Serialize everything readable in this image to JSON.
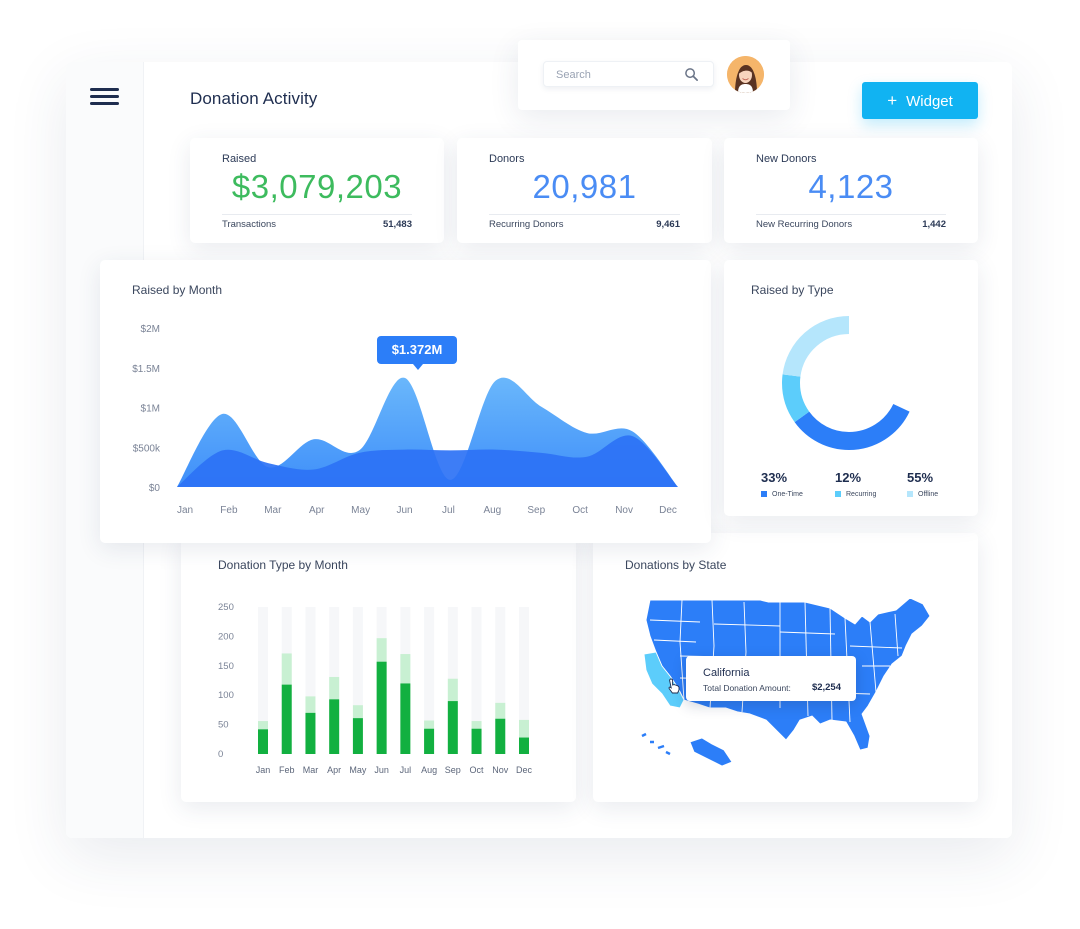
{
  "header": {
    "title": "Donation Activity",
    "search_placeholder": "Search",
    "widget_label": "Widget"
  },
  "stats": [
    {
      "label": "Raised",
      "value": "$3,079,203",
      "sub_label": "Transactions",
      "sub_value": "51,483",
      "color": "#3dbb5e"
    },
    {
      "label": "Donors",
      "value": "20,981",
      "sub_label": "Recurring Donors",
      "sub_value": "9,461",
      "color": "#4a8cf4"
    },
    {
      "label": "New Donors",
      "value": "4,123",
      "sub_label": "New Recurring Donors",
      "sub_value": "1,442",
      "color": "#4a8cf4"
    }
  ],
  "raised_by_month": {
    "title": "Raised by Month",
    "tooltip": "$1.372M"
  },
  "raised_by_type": {
    "title": "Raised by Type",
    "segments": [
      {
        "name": "One-Time",
        "pct": "33%",
        "color": "#2c7ef8"
      },
      {
        "name": "Recurring",
        "pct": "12%",
        "color": "#5ccdfb"
      },
      {
        "name": "Offline",
        "pct": "55%",
        "color": "#b5e6fc"
      }
    ]
  },
  "donation_type_by_month": {
    "title": "Donation Type by Month"
  },
  "donations_by_state": {
    "title": "Donations by State",
    "tooltip_state": "California",
    "tooltip_label": "Total Donation Amount:",
    "tooltip_value": "$2,254"
  },
  "colors": {
    "accent": "#11b3f2",
    "primary_blue": "#2c7ef8",
    "green": "#3dbb5e",
    "bar_dark": "#12b040",
    "bar_light": "#c8f0d2"
  },
  "chart_data": [
    {
      "type": "area",
      "title": "Raised by Month",
      "categories": [
        "Jan",
        "Feb",
        "Mar",
        "Apr",
        "May",
        "Jun",
        "Jul",
        "Aug",
        "Sep",
        "Oct",
        "Nov",
        "Dec"
      ],
      "y_ticks": [
        "$0",
        "$500k",
        "$1M",
        "$1.5M",
        "$2M"
      ],
      "ylim": [
        0,
        2000000
      ],
      "series": [
        {
          "values": [
            0,
            920000,
            250000,
            600000,
            460000,
            1372000,
            90000,
            1340000,
            1010000,
            680000,
            700000,
            0
          ]
        },
        {
          "values": [
            0,
            460000,
            300000,
            220000,
            430000,
            470000,
            460000,
            470000,
            430000,
            380000,
            640000,
            0
          ]
        }
      ],
      "annotation": "$1.372M",
      "grid": false
    },
    {
      "type": "pie",
      "title": "Raised by Type",
      "labels": [
        "One-Time",
        "Recurring",
        "Offline"
      ],
      "values": [
        33,
        12,
        55
      ]
    },
    {
      "type": "bar",
      "title": "Donation Type by Month",
      "categories": [
        "Jan",
        "Feb",
        "Mar",
        "Apr",
        "May",
        "Jun",
        "Jul",
        "Aug",
        "Sep",
        "Oct",
        "Nov",
        "Dec"
      ],
      "y_ticks": [
        "0",
        "50",
        "100",
        "150",
        "200",
        "250"
      ],
      "ylim": [
        0,
        250
      ],
      "stacked": true,
      "series": [
        {
          "values": [
            42,
            118,
            70,
            93,
            61,
            157,
            120,
            43,
            90,
            43,
            60,
            28
          ]
        },
        {
          "values": [
            14,
            53,
            28,
            38,
            22,
            40,
            50,
            14,
            38,
            13,
            27,
            30
          ]
        }
      ]
    }
  ]
}
